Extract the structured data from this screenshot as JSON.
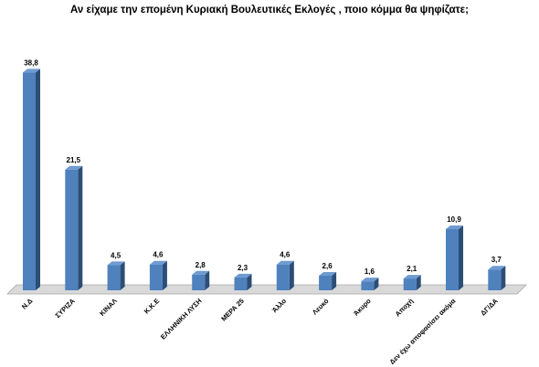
{
  "chart_data": {
    "type": "bar",
    "title": "Αν είχαμε την επομένη Κυριακή Βουλευτικές Εκλογές , ποιο κόμμα θα ψηφίζατε;",
    "categories": [
      "Ν.Δ",
      "ΣΥΡΙΖΑ",
      "ΚΙΝΑΛ",
      "Κ.Κ.Ε",
      "ΕΛΛΗΝΙΚΗ ΛΥΣΗ",
      "ΜΕΡΑ 25",
      "Άλλο",
      "Λευκό",
      "Άκυρο",
      "Αποχή",
      "Δεν έχω αποφασίσει ακόμα",
      "ΔΓ/ΔΑ"
    ],
    "values": [
      38.8,
      21.5,
      4.5,
      4.6,
      2.8,
      2.3,
      4.6,
      2.6,
      1.6,
      2.1,
      10.9,
      3.7
    ],
    "value_labels": [
      "38,8",
      "21,5",
      "4,5",
      "4,6",
      "2,8",
      "2,3",
      "4,6",
      "2,6",
      "1,6",
      "2,1",
      "10,9",
      "3,7"
    ],
    "xlabel": "",
    "ylabel": "",
    "ylim": [
      0,
      40
    ],
    "grid": false,
    "legend": "none",
    "colors": {
      "bar_front": "#4f81bd",
      "bar_side": "#2c4d75",
      "bar_top": "#6f9bd1",
      "floor": "#d9d9d9",
      "floor_edge": "#a6a6a6"
    }
  }
}
